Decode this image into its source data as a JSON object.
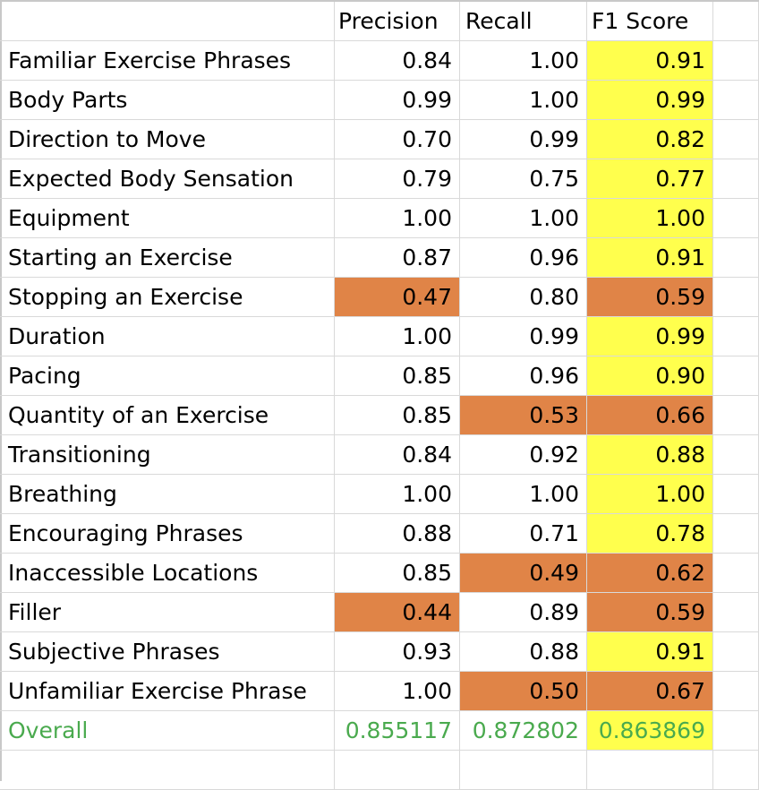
{
  "headers": {
    "label": "",
    "precision": "Precision",
    "recall": "Recall",
    "f1": "F1 Score"
  },
  "rows": [
    {
      "label": "Familiar Exercise Phrases",
      "precision": "0.84",
      "recall": "1.00",
      "f1": "0.91",
      "hl": [
        "",
        "",
        "yellow"
      ]
    },
    {
      "label": "Body Parts",
      "precision": "0.99",
      "recall": "1.00",
      "f1": "0.99",
      "hl": [
        "",
        "",
        "yellow"
      ]
    },
    {
      "label": "Direction to Move",
      "precision": "0.70",
      "recall": "0.99",
      "f1": "0.82",
      "hl": [
        "",
        "",
        "yellow"
      ]
    },
    {
      "label": "Expected Body Sensation",
      "precision": "0.79",
      "recall": "0.75",
      "f1": "0.77",
      "hl": [
        "",
        "",
        "yellow"
      ]
    },
    {
      "label": "Equipment",
      "precision": "1.00",
      "recall": "1.00",
      "f1": "1.00",
      "hl": [
        "",
        "",
        "yellow"
      ]
    },
    {
      "label": "Starting an Exercise",
      "precision": "0.87",
      "recall": "0.96",
      "f1": "0.91",
      "hl": [
        "",
        "",
        "yellow"
      ]
    },
    {
      "label": "Stopping an Exercise",
      "precision": "0.47",
      "recall": "0.80",
      "f1": "0.59",
      "hl": [
        "orange",
        "",
        "orange"
      ]
    },
    {
      "label": "Duration",
      "precision": "1.00",
      "recall": "0.99",
      "f1": "0.99",
      "hl": [
        "",
        "",
        "yellow"
      ]
    },
    {
      "label": "Pacing",
      "precision": "0.85",
      "recall": "0.96",
      "f1": "0.90",
      "hl": [
        "",
        "",
        "yellow"
      ]
    },
    {
      "label": "Quantity of an Exercise",
      "precision": "0.85",
      "recall": "0.53",
      "f1": "0.66",
      "hl": [
        "",
        "orange",
        "orange"
      ]
    },
    {
      "label": "Transitioning",
      "precision": "0.84",
      "recall": "0.92",
      "f1": "0.88",
      "hl": [
        "",
        "",
        "yellow"
      ]
    },
    {
      "label": "Breathing",
      "precision": "1.00",
      "recall": "1.00",
      "f1": "1.00",
      "hl": [
        "",
        "",
        "yellow"
      ]
    },
    {
      "label": "Encouraging Phrases",
      "precision": "0.88",
      "recall": "0.71",
      "f1": "0.78",
      "hl": [
        "",
        "",
        "yellow"
      ]
    },
    {
      "label": "Inaccessible Locations",
      "precision": "0.85",
      "recall": "0.49",
      "f1": "0.62",
      "hl": [
        "",
        "orange",
        "orange"
      ]
    },
    {
      "label": "Filler",
      "precision": "0.44",
      "recall": "0.89",
      "f1": "0.59",
      "hl": [
        "orange",
        "",
        "orange"
      ]
    },
    {
      "label": "Subjective Phrases",
      "precision": "0.93",
      "recall": "0.88",
      "f1": "0.91",
      "hl": [
        "",
        "",
        "yellow"
      ]
    },
    {
      "label": "Unfamiliar Exercise Phrase",
      "precision": "1.00",
      "recall": "0.50",
      "f1": "0.67",
      "hl": [
        "",
        "orange",
        "orange"
      ]
    }
  ],
  "overall": {
    "label": "Overall",
    "precision": "0.855117",
    "recall": "0.872802",
    "f1": "0.863869",
    "hl": [
      "",
      "",
      "yellow"
    ]
  },
  "colors": {
    "yellow": "#ffff4d",
    "orange": "#e08447",
    "overall_text": "#4aaa4e",
    "gridline": "#d9d9d9"
  }
}
